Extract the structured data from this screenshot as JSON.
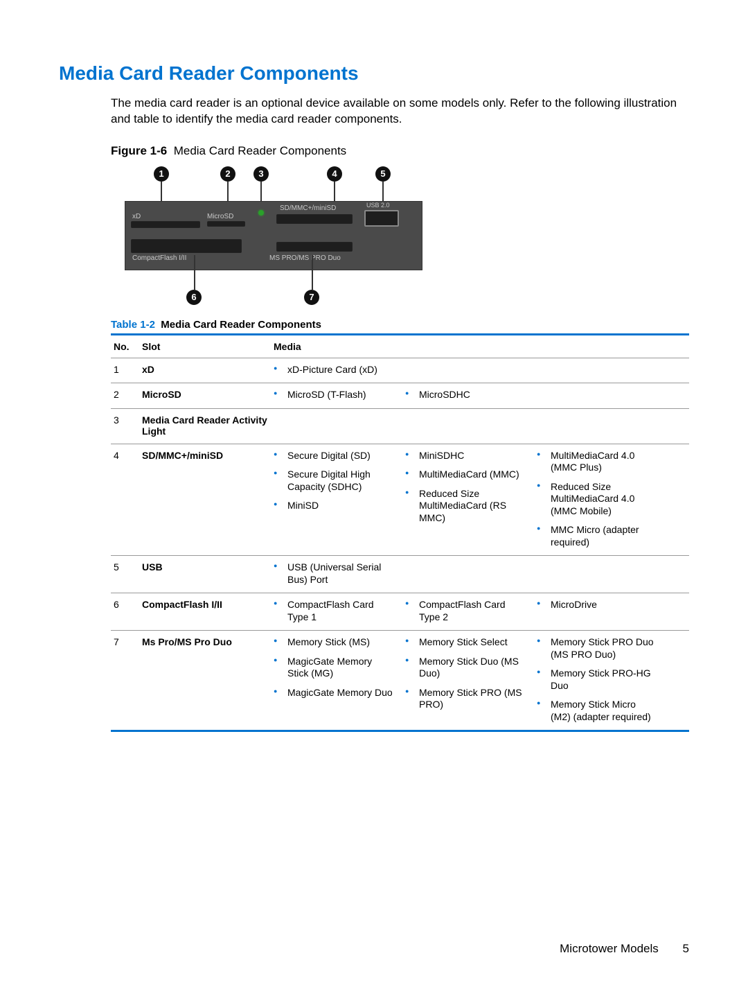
{
  "colors": {
    "accent": "#0073cf",
    "text": "#000000",
    "background": "#ffffff",
    "diagram_body": "#4a4a4a",
    "diagram_slot": "#1e1e1e",
    "diagram_label": "#c8c8c8",
    "led": "#2aa02a",
    "rule": "#999999"
  },
  "section_title": "Media Card Reader Components",
  "intro_text": "The media card reader is an optional device available on some models only. Refer to the following illustration and table to identify the media card reader components.",
  "figure": {
    "label": "Figure 1-6",
    "title": "Media Card Reader Components",
    "callouts_top": [
      "1",
      "2",
      "3",
      "4",
      "5"
    ],
    "callouts_bottom": [
      "6",
      "7"
    ],
    "panel_labels": {
      "xd": "xD",
      "microsd": "MicroSD",
      "sdmmc": "SD/MMC+/miniSD",
      "usb": "USB 2.0",
      "cf": "CompactFlash I/II",
      "mspro": "MS PRO/MS PRO Duo"
    }
  },
  "table": {
    "caption_label": "Table 1-2",
    "caption_title": "Media Card Reader Components",
    "headers": {
      "no": "No.",
      "slot": "Slot",
      "media": "Media"
    },
    "rows": [
      {
        "no": "1",
        "slot": "xD",
        "media_cols": [
          [
            "xD-Picture Card (xD)"
          ]
        ]
      },
      {
        "no": "2",
        "slot": "MicroSD",
        "media_cols": [
          [
            "MicroSD (T-Flash)"
          ],
          [
            "MicroSDHC"
          ]
        ]
      },
      {
        "no": "3",
        "slot": "Media Card Reader Activity Light",
        "media_cols": []
      },
      {
        "no": "4",
        "slot": "SD/MMC+/miniSD",
        "media_cols": [
          [
            "Secure Digital (SD)",
            "Secure Digital High Capacity (SDHC)",
            "MiniSD"
          ],
          [
            "MiniSDHC",
            "MultiMediaCard (MMC)",
            "Reduced Size MultiMediaCard (RS MMC)"
          ],
          [
            "MultiMediaCard 4.0 (MMC Plus)",
            "Reduced Size MultiMediaCard 4.0 (MMC Mobile)",
            "MMC Micro (adapter required)"
          ]
        ]
      },
      {
        "no": "5",
        "slot": "USB",
        "media_cols": [
          [
            "USB (Universal Serial Bus) Port"
          ]
        ]
      },
      {
        "no": "6",
        "slot": "CompactFlash I/II",
        "media_cols": [
          [
            "CompactFlash Card Type 1"
          ],
          [
            "CompactFlash Card Type 2"
          ],
          [
            "MicroDrive"
          ]
        ]
      },
      {
        "no": "7",
        "slot": "Ms Pro/MS Pro Duo",
        "media_cols": [
          [
            "Memory Stick (MS)",
            "MagicGate Memory Stick (MG)",
            "MagicGate Memory Duo"
          ],
          [
            "Memory Stick Select",
            "Memory Stick Duo (MS Duo)",
            "Memory Stick PRO (MS PRO)"
          ],
          [
            "Memory Stick PRO Duo (MS PRO Duo)",
            "Memory Stick PRO-HG Duo",
            "Memory Stick Micro (M2) (adapter required)"
          ]
        ]
      }
    ]
  },
  "footer": {
    "section": "Microtower Models",
    "page": "5"
  }
}
